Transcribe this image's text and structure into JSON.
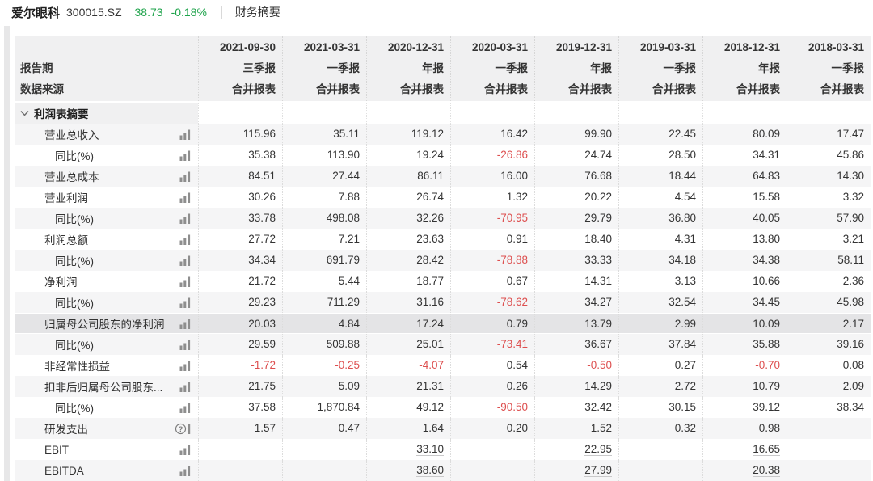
{
  "header": {
    "stock_name": "爱尔眼科",
    "stock_code": "300015.SZ",
    "price": "38.73",
    "change_percent": "-0.18%",
    "tab": "财务摘要"
  },
  "colors": {
    "quote_green": "#1ea34b",
    "negative_red": "#dd4f4f",
    "header_bg": "#f0f0f1",
    "stripe_bg": "#f5f5f6",
    "highlight_bg": "#e4e4e6"
  },
  "table": {
    "label_header": {
      "period_label": "报告期",
      "source_label": "数据来源"
    },
    "columns": [
      {
        "date": "2021-09-30",
        "period": "三季报",
        "source": "合并报表"
      },
      {
        "date": "2021-03-31",
        "period": "一季报",
        "source": "合并报表"
      },
      {
        "date": "2020-12-31",
        "period": "年报",
        "source": "合并报表"
      },
      {
        "date": "2020-03-31",
        "period": "一季报",
        "source": "合并报表"
      },
      {
        "date": "2019-12-31",
        "period": "年报",
        "source": "合并报表"
      },
      {
        "date": "2019-03-31",
        "period": "一季报",
        "source": "合并报表"
      },
      {
        "date": "2018-12-31",
        "period": "年报",
        "source": "合并报表"
      },
      {
        "date": "2018-03-31",
        "period": "一季报",
        "source": "合并报表"
      }
    ],
    "section_title": "利润表摘要",
    "rows": [
      {
        "label": "营业总收入",
        "indent": 1,
        "icon": "bar-chart",
        "values": [
          "115.96",
          "35.11",
          "119.12",
          "16.42",
          "99.90",
          "22.45",
          "80.09",
          "17.47"
        ]
      },
      {
        "label": "同比(%)",
        "indent": 2,
        "icon": "bar-chart",
        "values": [
          "35.38",
          "113.90",
          "19.24",
          "-26.86",
          "24.74",
          "28.50",
          "34.31",
          "45.86"
        ]
      },
      {
        "label": "营业总成本",
        "indent": 1,
        "icon": "bar-chart",
        "values": [
          "84.51",
          "27.44",
          "86.11",
          "16.00",
          "76.68",
          "18.44",
          "64.83",
          "14.30"
        ]
      },
      {
        "label": "营业利润",
        "indent": 1,
        "icon": "bar-chart",
        "values": [
          "30.26",
          "7.88",
          "26.74",
          "1.32",
          "20.22",
          "4.54",
          "15.58",
          "3.32"
        ]
      },
      {
        "label": "同比(%)",
        "indent": 2,
        "icon": "bar-chart",
        "values": [
          "33.78",
          "498.08",
          "32.26",
          "-70.95",
          "29.79",
          "36.80",
          "40.05",
          "57.90"
        ]
      },
      {
        "label": "利润总额",
        "indent": 1,
        "icon": "bar-chart",
        "values": [
          "27.72",
          "7.21",
          "23.63",
          "0.91",
          "18.40",
          "4.31",
          "13.80",
          "3.21"
        ]
      },
      {
        "label": "同比(%)",
        "indent": 2,
        "icon": "bar-chart",
        "values": [
          "34.34",
          "691.79",
          "28.42",
          "-78.88",
          "33.33",
          "34.18",
          "34.38",
          "58.11"
        ]
      },
      {
        "label": "净利润",
        "indent": 1,
        "icon": "bar-chart",
        "values": [
          "21.72",
          "5.44",
          "18.77",
          "0.67",
          "14.31",
          "3.13",
          "10.66",
          "2.36"
        ]
      },
      {
        "label": "同比(%)",
        "indent": 2,
        "icon": "bar-chart",
        "values": [
          "29.23",
          "711.29",
          "31.16",
          "-78.62",
          "34.27",
          "32.54",
          "34.45",
          "45.98"
        ]
      },
      {
        "label": "归属母公司股东的净利润",
        "indent": 1,
        "icon": "bar-chart",
        "highlight": true,
        "values": [
          "20.03",
          "4.84",
          "17.24",
          "0.79",
          "13.79",
          "2.99",
          "10.09",
          "2.17"
        ]
      },
      {
        "label": "同比(%)",
        "indent": 2,
        "icon": "bar-chart",
        "values": [
          "29.59",
          "509.88",
          "25.01",
          "-73.41",
          "36.67",
          "37.84",
          "35.88",
          "39.16"
        ]
      },
      {
        "label": "非经常性损益",
        "indent": 1,
        "icon": "bar-chart",
        "values": [
          "-1.72",
          "-0.25",
          "-4.07",
          "0.54",
          "-0.50",
          "0.27",
          "-0.70",
          "0.08"
        ]
      },
      {
        "label": "扣非后归属母公司股东...",
        "indent": 1,
        "icon": "bar-chart",
        "values": [
          "21.75",
          "5.09",
          "21.31",
          "0.26",
          "14.29",
          "2.72",
          "10.79",
          "2.09"
        ]
      },
      {
        "label": "同比(%)",
        "indent": 2,
        "icon": "bar-chart",
        "values": [
          "37.58",
          "1,870.84",
          "49.12",
          "-90.50",
          "32.42",
          "30.15",
          "39.12",
          "38.34"
        ]
      },
      {
        "label": "研发支出",
        "indent": 1,
        "icon": "question-circle",
        "values": [
          "1.57",
          "0.47",
          "1.64",
          "0.20",
          "1.52",
          "0.32",
          "0.98",
          ""
        ]
      },
      {
        "label": "EBIT",
        "indent": 1,
        "icon": "bar-chart",
        "underline": true,
        "values": [
          "",
          "",
          "33.10",
          "",
          "22.95",
          "",
          "16.65",
          ""
        ]
      },
      {
        "label": "EBITDA",
        "indent": 1,
        "icon": "bar-chart",
        "underline": true,
        "values": [
          "",
          "",
          "38.60",
          "",
          "27.99",
          "",
          "20.38",
          ""
        ]
      }
    ]
  }
}
